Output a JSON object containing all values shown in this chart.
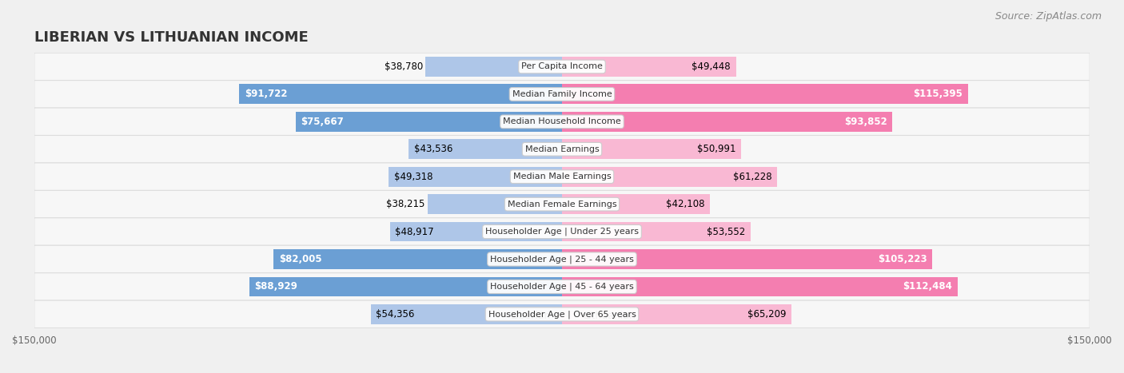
{
  "title": "LIBERIAN VS LITHUANIAN INCOME",
  "source": "Source: ZipAtlas.com",
  "categories": [
    "Per Capita Income",
    "Median Family Income",
    "Median Household Income",
    "Median Earnings",
    "Median Male Earnings",
    "Median Female Earnings",
    "Householder Age | Under 25 years",
    "Householder Age | 25 - 44 years",
    "Householder Age | 45 - 64 years",
    "Householder Age | Over 65 years"
  ],
  "liberian_values": [
    38780,
    91722,
    75667,
    43536,
    49318,
    38215,
    48917,
    82005,
    88929,
    54356
  ],
  "lithuanian_values": [
    49448,
    115395,
    93852,
    50991,
    61228,
    42108,
    53552,
    105223,
    112484,
    65209
  ],
  "liberian_color_dark": "#6b9fd4",
  "liberian_color_light": "#aec6e8",
  "lithuanian_color_dark": "#f47eb0",
  "lithuanian_color_light": "#f9b8d3",
  "max_value": 150000,
  "bg_color": "#f0f0f0",
  "row_bg_color": "#f7f7f7",
  "row_border_color": "#dddddd",
  "label_bg_color": "#ffffff",
  "title_fontsize": 13,
  "source_fontsize": 9,
  "bar_label_fontsize": 8.5,
  "category_fontsize": 8,
  "legend_fontsize": 9,
  "axis_label_fontsize": 8.5
}
